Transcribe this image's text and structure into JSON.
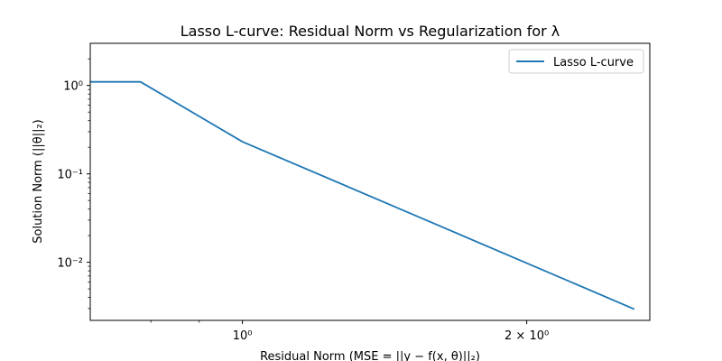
{
  "chart_data": {
    "type": "line",
    "title": "Lasso L-curve: Residual Norm vs Regularization for λ",
    "xlabel": "Residual Norm (MSE = ||y − f(x, θ)||₂)",
    "ylabel": "Solution Norm (||θ||₂)",
    "xscale": "log",
    "yscale": "log",
    "xlim": [
      0.69,
      2.7
    ],
    "ylim": [
      0.0022,
      3.0
    ],
    "x_ticks": [
      {
        "value": 1.0,
        "label": "10⁰"
      },
      {
        "value": 2.0,
        "label": "2 × 10⁰"
      }
    ],
    "x_minor_ticks": [
      0.8,
      0.9,
      3.0
    ],
    "y_ticks": [
      {
        "value": 1.0,
        "label": "10⁰"
      },
      {
        "value": 0.1,
        "label": "10⁻¹"
      },
      {
        "value": 0.01,
        "label": "10⁻²"
      }
    ],
    "grid": false,
    "legend": {
      "position": "top-right",
      "entries": [
        "Lasso L-curve"
      ]
    },
    "series": [
      {
        "name": "Lasso L-curve",
        "color": "#1f77b4",
        "x": [
          0.69,
          0.78,
          1.0,
          1.5,
          2.6
        ],
        "y": [
          1.1,
          1.1,
          0.231,
          0.0364,
          0.00295
        ]
      }
    ]
  }
}
